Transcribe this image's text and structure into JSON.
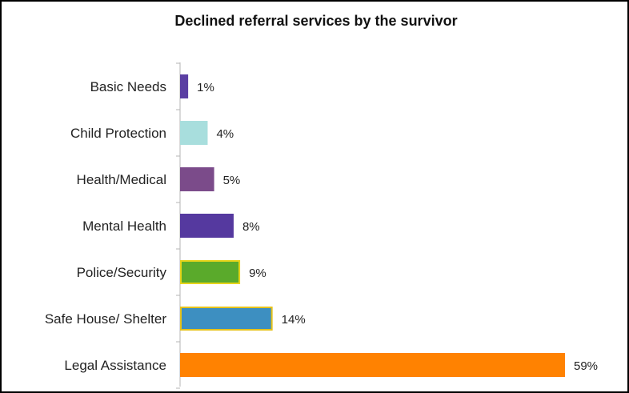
{
  "chart_data": {
    "type": "bar",
    "orientation": "horizontal",
    "title": "Declined referral services by the survivor",
    "categories": [
      "Basic Needs",
      "Child Protection",
      "Health/Medical",
      "Mental Health",
      "Police/Security",
      "Safe House/ Shelter",
      "Legal Assistance"
    ],
    "values": [
      1,
      4,
      5,
      8,
      9,
      14,
      59
    ],
    "value_labels": [
      "1%",
      "4%",
      "5%",
      "8%",
      "9%",
      "14%",
      "59%"
    ],
    "unit": "%",
    "xlim": [
      0,
      60
    ],
    "grid": false,
    "legend": false,
    "colors": [
      "#5b3fa3",
      "#a8dedd",
      "#7b4b8a",
      "#55399f",
      "#5aaa2b",
      "#3d8fc1",
      "#ff8201"
    ],
    "edge_colors": [
      "#5b3fa3",
      "#a8dedd",
      "#7b4b8a",
      "#55399f",
      "#e6d41a",
      "#e6c21a",
      "#ff8201"
    ]
  }
}
